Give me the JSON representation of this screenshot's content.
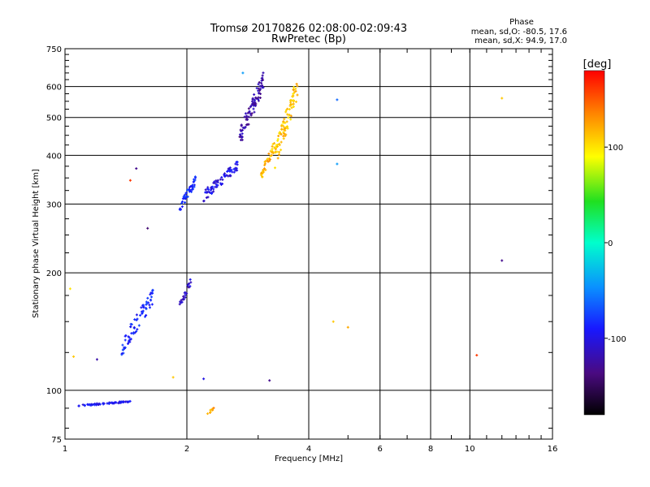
{
  "chart_data": {
    "type": "scatter",
    "title": "Tromsø 20170826 02:08:00-02:09:43",
    "subtitle": "RwPretec (Bp)",
    "xlabel": "Frequency [MHz]",
    "ylabel": "Stationary phase Virtual Height [km]",
    "x_scale": "log",
    "y_scale": "log",
    "xlim": [
      1,
      16
    ],
    "ylim": [
      75,
      750
    ],
    "x_ticks": [
      "1",
      "2",
      "4",
      "6",
      "8",
      "10",
      "16"
    ],
    "x_tick_values": [
      1,
      2,
      4,
      6,
      8,
      10,
      16
    ],
    "y_ticks": [
      "75",
      "100",
      "200",
      "300",
      "400",
      "500",
      "600",
      "750"
    ],
    "y_tick_values": [
      75,
      100,
      200,
      300,
      400,
      500,
      600,
      750
    ],
    "grid": true,
    "stats": {
      "heading": "Phase",
      "line_o": "mean, sd,O: -80.5, 17.6",
      "line_x": "mean, sd,X: 94.9, 17.0"
    },
    "colorbar": {
      "label": "[deg]",
      "range": [
        -180,
        180
      ],
      "ticks": [
        "100",
        "0",
        "-100"
      ],
      "tick_values": [
        100,
        0,
        -100
      ]
    },
    "clusters": [
      {
        "fmin": 1.08,
        "fmax": 1.45,
        "hmin": 91,
        "hmax": 94,
        "phase": -95,
        "n": 70
      },
      {
        "fmin": 1.38,
        "fmax": 1.65,
        "hmin": 122,
        "hmax": 185,
        "phase": -85,
        "n": 70
      },
      {
        "fmin": 1.92,
        "fmax": 2.05,
        "hmin": 160,
        "hmax": 195,
        "phase": -110,
        "n": 22
      },
      {
        "fmin": 1.92,
        "fmax": 2.1,
        "hmin": 285,
        "hmax": 355,
        "phase": -85,
        "n": 45
      },
      {
        "fmin": 2.2,
        "fmax": 2.7,
        "hmin": 305,
        "hmax": 395,
        "phase": -100,
        "n": 70
      },
      {
        "fmin": 2.7,
        "fmax": 3.1,
        "hmin": 420,
        "hmax": 660,
        "phase": -120,
        "n": 85
      },
      {
        "fmin": 3.05,
        "fmax": 3.3,
        "hmin": 345,
        "hmax": 440,
        "phase": 115,
        "n": 40
      },
      {
        "fmin": 3.3,
        "fmax": 3.75,
        "hmin": 370,
        "hmax": 640,
        "phase": 110,
        "n": 90
      },
      {
        "fmin": 2.25,
        "fmax": 2.35,
        "hmin": 86,
        "hmax": 92,
        "phase": 120,
        "n": 8
      }
    ],
    "isolated_points": [
      {
        "f": 1.03,
        "h": 182,
        "phase": 100
      },
      {
        "f": 1.05,
        "h": 122,
        "phase": 110
      },
      {
        "f": 1.2,
        "h": 120,
        "phase": -120
      },
      {
        "f": 1.45,
        "h": 345,
        "phase": 160
      },
      {
        "f": 1.5,
        "h": 370,
        "phase": -130
      },
      {
        "f": 1.6,
        "h": 260,
        "phase": -140
      },
      {
        "f": 1.85,
        "h": 108,
        "phase": 110
      },
      {
        "f": 2.2,
        "h": 107,
        "phase": -100
      },
      {
        "f": 2.75,
        "h": 650,
        "phase": -40
      },
      {
        "f": 3.2,
        "h": 106,
        "phase": -130
      },
      {
        "f": 4.6,
        "h": 150,
        "phase": 110
      },
      {
        "f": 4.7,
        "h": 555,
        "phase": -60
      },
      {
        "f": 4.7,
        "h": 380,
        "phase": -40
      },
      {
        "f": 5.0,
        "h": 145,
        "phase": 120
      },
      {
        "f": 10.4,
        "h": 123,
        "phase": 160
      },
      {
        "f": 12.0,
        "h": 560,
        "phase": 110
      },
      {
        "f": 12.0,
        "h": 215,
        "phase": -130
      }
    ]
  }
}
